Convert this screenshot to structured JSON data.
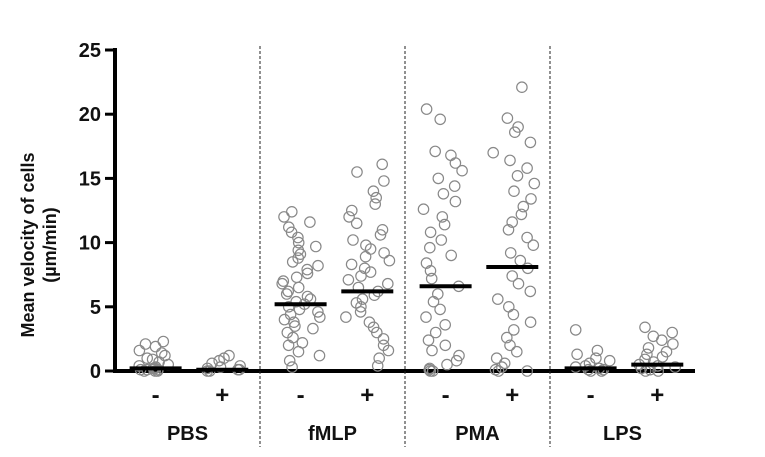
{
  "chart_data": {
    "type": "scatter",
    "ylabel_line1": "Mean velocity of cells",
    "ylabel_line2": "(µm/min)",
    "ylim": [
      0,
      25
    ],
    "yticks": [
      "0",
      "5",
      "10",
      "15",
      "20",
      "25"
    ],
    "groups": [
      "PBS",
      "fMLP",
      "PMA",
      "LPS"
    ],
    "conditions": [
      "-",
      "+"
    ],
    "marker": "open-circle",
    "point_color": "#888888",
    "line_color": "#000000",
    "series": [
      {
        "group": "PBS",
        "condition": "-",
        "mean": 0.2,
        "points": [
          0.0,
          0.0,
          0.1,
          0.1,
          0.2,
          0.3,
          0.4,
          0.5,
          0.7,
          0.9,
          1.0,
          1.2,
          1.4,
          1.6,
          1.9,
          2.1,
          2.3,
          0.0,
          0.1,
          0.2
        ]
      },
      {
        "group": "PBS",
        "condition": "+",
        "mean": 0.1,
        "points": [
          0.0,
          0.0,
          0.1,
          0.1,
          0.2,
          0.3,
          0.4,
          0.6,
          0.8,
          1.0,
          1.2
        ]
      },
      {
        "group": "fMLP",
        "condition": "-",
        "mean": 5.2,
        "points": [
          0.3,
          0.8,
          1.2,
          1.5,
          2.0,
          2.2,
          2.6,
          3.0,
          3.3,
          3.5,
          3.8,
          4.0,
          4.2,
          4.4,
          4.6,
          4.8,
          5.0,
          5.2,
          5.4,
          5.6,
          5.8,
          6.0,
          6.2,
          6.5,
          6.8,
          7.0,
          7.3,
          7.6,
          7.9,
          8.2,
          8.5,
          8.8,
          9.1,
          9.4,
          9.7,
          10.0,
          10.4,
          10.8,
          11.2,
          11.6,
          12.0,
          12.4
        ]
      },
      {
        "group": "fMLP",
        "condition": "+",
        "mean": 6.2,
        "points": [
          0.4,
          1.0,
          1.6,
          2.0,
          2.5,
          3.0,
          3.4,
          3.8,
          4.2,
          4.6,
          5.0,
          5.3,
          5.6,
          5.9,
          6.2,
          6.5,
          6.8,
          7.1,
          7.4,
          7.7,
          8.0,
          8.3,
          8.6,
          8.9,
          9.2,
          9.5,
          9.8,
          10.2,
          10.6,
          11.0,
          11.5,
          12.0,
          12.5,
          13.0,
          13.5,
          14.0,
          14.8,
          15.5,
          16.1
        ]
      },
      {
        "group": "PMA",
        "condition": "-",
        "mean": 6.6,
        "points": [
          0.0,
          0.0,
          0.1,
          0.2,
          0.5,
          0.8,
          1.2,
          1.6,
          2.0,
          2.4,
          3.0,
          3.6,
          4.2,
          4.8,
          5.4,
          6.0,
          6.6,
          7.2,
          7.8,
          8.4,
          9.0,
          9.6,
          10.2,
          10.8,
          11.4,
          12.0,
          12.6,
          13.2,
          13.8,
          14.4,
          15.0,
          15.6,
          16.2,
          16.8,
          17.1,
          19.6,
          20.4
        ]
      },
      {
        "group": "PMA",
        "condition": "+",
        "mean": 8.1,
        "points": [
          0.0,
          0.0,
          0.1,
          0.3,
          0.6,
          1.0,
          1.5,
          2.0,
          2.6,
          3.2,
          3.8,
          4.4,
          5.0,
          5.6,
          6.2,
          6.8,
          7.4,
          8.0,
          8.6,
          9.2,
          9.8,
          10.4,
          11.0,
          11.6,
          12.2,
          12.8,
          13.4,
          14.0,
          14.6,
          15.2,
          15.8,
          16.4,
          17.0,
          17.8,
          18.6,
          19.0,
          19.7,
          22.1
        ]
      },
      {
        "group": "LPS",
        "condition": "-",
        "mean": 0.2,
        "points": [
          0.0,
          0.0,
          0.1,
          0.1,
          0.2,
          0.3,
          0.4,
          0.6,
          0.8,
          1.0,
          1.3,
          1.6,
          3.2
        ]
      },
      {
        "group": "LPS",
        "condition": "+",
        "mean": 0.5,
        "points": [
          0.0,
          0.0,
          0.1,
          0.2,
          0.3,
          0.4,
          0.5,
          0.7,
          0.9,
          1.1,
          1.3,
          1.5,
          1.8,
          2.1,
          2.4,
          2.7,
          3.0,
          3.4
        ]
      }
    ]
  }
}
